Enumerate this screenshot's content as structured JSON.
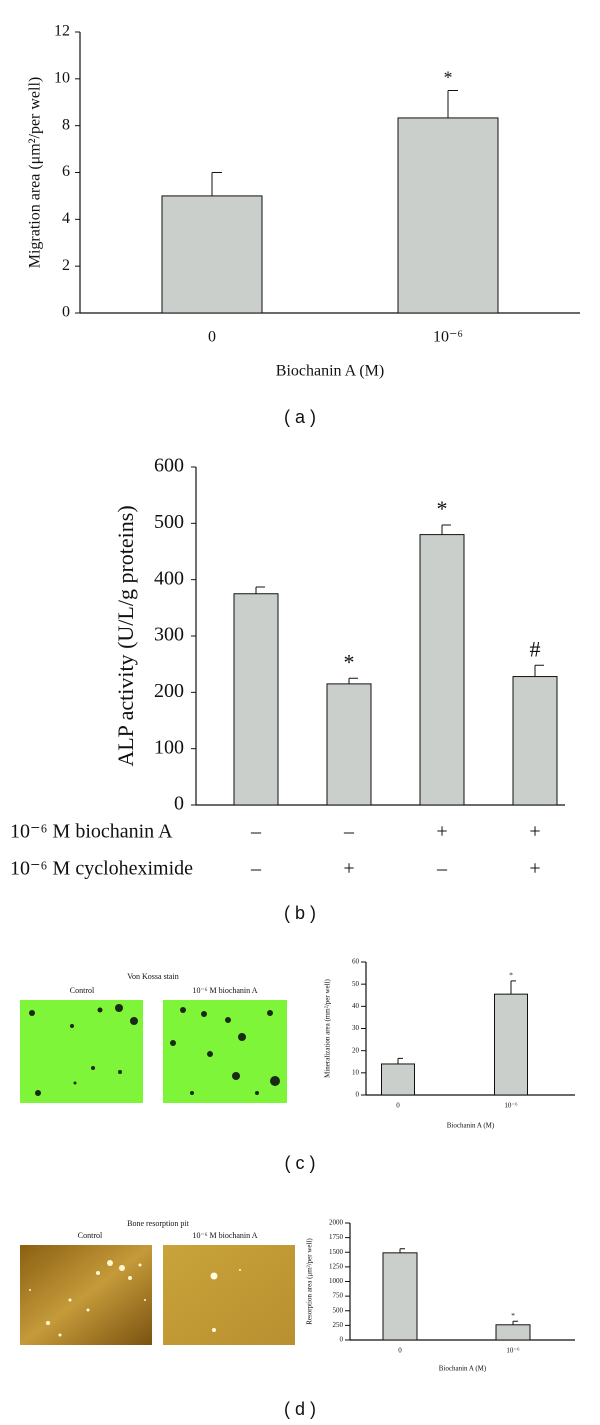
{
  "chart_data": [
    {
      "type": "bar",
      "panel_label": "( a )",
      "ylabel": "Migration area (μm²/per well)",
      "xlabel": "Biochanin A (M)",
      "categories": [
        "0",
        "10⁻⁶"
      ],
      "values": [
        5,
        8.33
      ],
      "errors": [
        1,
        1.17
      ],
      "annotations": [
        null,
        "*"
      ],
      "color": "#cbcfcb",
      "ylim": [
        0,
        12
      ],
      "yticks": [
        0,
        2,
        4,
        6,
        8,
        10,
        12
      ]
    },
    {
      "type": "bar",
      "panel_label": "( b )",
      "ylabel": "ALP activity (U/L/g proteins)",
      "conditions": [
        {
          "label": "10⁻⁶ M biochanin A",
          "values": [
            "–",
            "–",
            "+",
            "+"
          ]
        },
        {
          "label": "10⁻⁶ M cycloheximide",
          "values": [
            "–",
            "+",
            "–",
            "+"
          ]
        }
      ],
      "values": [
        375,
        215,
        480,
        228
      ],
      "errors": [
        12,
        10,
        17,
        20
      ],
      "annotations": [
        null,
        "*",
        "*",
        "#"
      ],
      "color": "#cbcfcb",
      "ylim": [
        0,
        600
      ],
      "yticks": [
        0,
        100,
        200,
        300,
        400,
        500,
        600
      ]
    },
    {
      "type": "bar",
      "panel_label": "( c )",
      "image_title": "Von Kossa stain",
      "image_captions": [
        "Control",
        "10⁻⁶ M biochanin A"
      ],
      "ylabel": "Mineralization area (mm²/per well)",
      "xlabel": "Biochanin A (M)",
      "categories": [
        "0",
        "10⁻⁶"
      ],
      "values": [
        14,
        45.5
      ],
      "errors": [
        2.5,
        6
      ],
      "annotations": [
        null,
        "*"
      ],
      "color": "#cbcfcb",
      "ylim": [
        0,
        60
      ],
      "yticks": [
        0,
        10,
        20,
        30,
        40,
        50,
        60
      ]
    },
    {
      "type": "bar",
      "panel_label": "( d )",
      "image_title": "Bone resorption pit",
      "image_captions": [
        "Control",
        "10⁻⁶ M biochanin A"
      ],
      "ylabel": "Resorption area (μm²/per well)",
      "xlabel": "Biochanin A (M)",
      "categories": [
        "0",
        "10⁻⁶"
      ],
      "values": [
        1490,
        260
      ],
      "errors": [
        70,
        60
      ],
      "annotations": [
        null,
        "*"
      ],
      "color": "#cbcfcb",
      "ylim": [
        0,
        2000
      ],
      "yticks": [
        0,
        250,
        500,
        750,
        1000,
        1250,
        1500,
        1750,
        2000
      ]
    }
  ]
}
